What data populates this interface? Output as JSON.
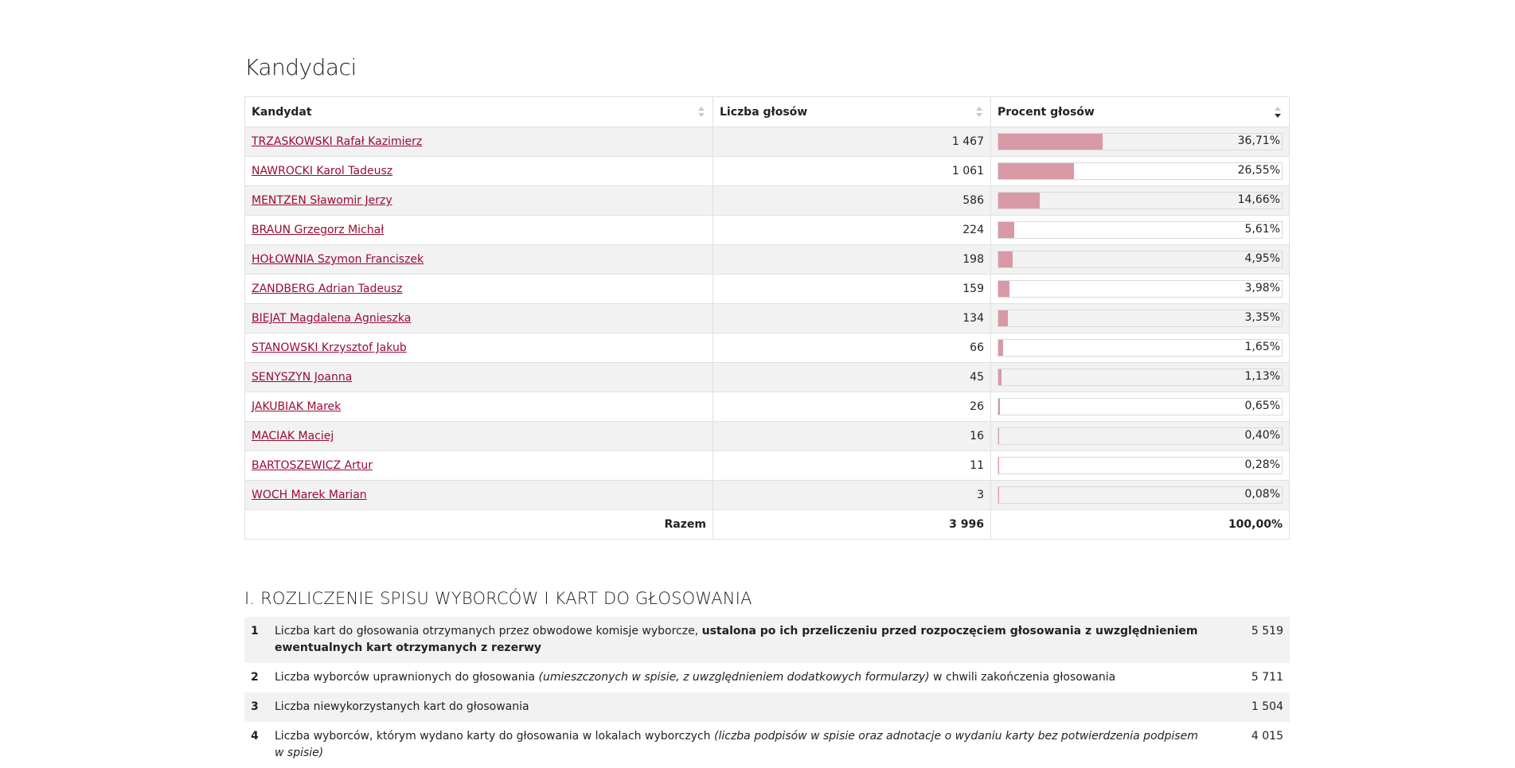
{
  "candidates_section": {
    "title": "Kandydaci",
    "headers": {
      "candidate": "Kandydat",
      "votes": "Liczba głosów",
      "percent": "Procent głosów"
    },
    "rows": [
      {
        "name": "TRZASKOWSKI Rafał Kazimierz",
        "votes": "1 467",
        "percent": "36,71%",
        "share": 0.3671
      },
      {
        "name": "NAWROCKI Karol Tadeusz",
        "votes": "1 061",
        "percent": "26,55%",
        "share": 0.2655
      },
      {
        "name": "MENTZEN Sławomir Jerzy",
        "votes": "586",
        "percent": "14,66%",
        "share": 0.1466
      },
      {
        "name": "BRAUN Grzegorz Michał",
        "votes": "224",
        "percent": "5,61%",
        "share": 0.0561
      },
      {
        "name": "HOŁOWNIA Szymon Franciszek",
        "votes": "198",
        "percent": "4,95%",
        "share": 0.0495
      },
      {
        "name": "ZANDBERG Adrian Tadeusz",
        "votes": "159",
        "percent": "3,98%",
        "share": 0.0398
      },
      {
        "name": "BIEJAT Magdalena Agnieszka",
        "votes": "134",
        "percent": "3,35%",
        "share": 0.0335
      },
      {
        "name": "STANOWSKI Krzysztof Jakub",
        "votes": "66",
        "percent": "1,65%",
        "share": 0.0165
      },
      {
        "name": "SENYSZYN Joanna",
        "votes": "45",
        "percent": "1,13%",
        "share": 0.0113
      },
      {
        "name": "JAKUBIAK Marek",
        "votes": "26",
        "percent": "0,65%",
        "share": 0.0065
      },
      {
        "name": "MACIAK Maciej",
        "votes": "16",
        "percent": "0,40%",
        "share": 0.004
      },
      {
        "name": "BARTOSZEWICZ Artur",
        "votes": "11",
        "percent": "0,28%",
        "share": 0.0028
      },
      {
        "name": "WOCH Marek Marian",
        "votes": "3",
        "percent": "0,08%",
        "share": 0.0008
      }
    ],
    "total": {
      "label": "Razem",
      "votes": "3 996",
      "percent": "100,00%"
    },
    "bar_color": "#d899a7",
    "link_color": "#9b0b32"
  },
  "settlement_section": {
    "title": "I. ROZLICZENIE SPISU WYBORCÓW I KART DO GŁOSOWANIA",
    "rows": [
      {
        "no": "1",
        "text": "Liczba kart do głosowania otrzymanych przez obwodowe komisje wyborcze, ",
        "bold": "ustalona po ich przeliczeniu przed rozpoczęciem głosowania z uwzględnieniem ewentualnych kart otrzymanych z rezerwy",
        "italic": "",
        "after": "",
        "value": "5 519"
      },
      {
        "no": "2",
        "text": "Liczba wyborców uprawnionych do głosowania ",
        "bold": "",
        "italic": "(umieszczonych w spisie, z uwzględnieniem dodatkowych formularzy)",
        "after": " w chwili zakończenia głosowania",
        "value": "5 711"
      },
      {
        "no": "3",
        "text": "Liczba niewykorzystanych kart do głosowania",
        "bold": "",
        "italic": "",
        "after": "",
        "value": "1 504"
      },
      {
        "no": "4",
        "text": "Liczba wyborców, którym wydano karty do głosowania w lokalach wyborczych ",
        "bold": "",
        "italic": "(liczba podpisów w spisie oraz adnotacje o wydaniu karty bez potwierdzenia podpisem w spisie)",
        "after": "",
        "value": "4 015"
      }
    ]
  }
}
